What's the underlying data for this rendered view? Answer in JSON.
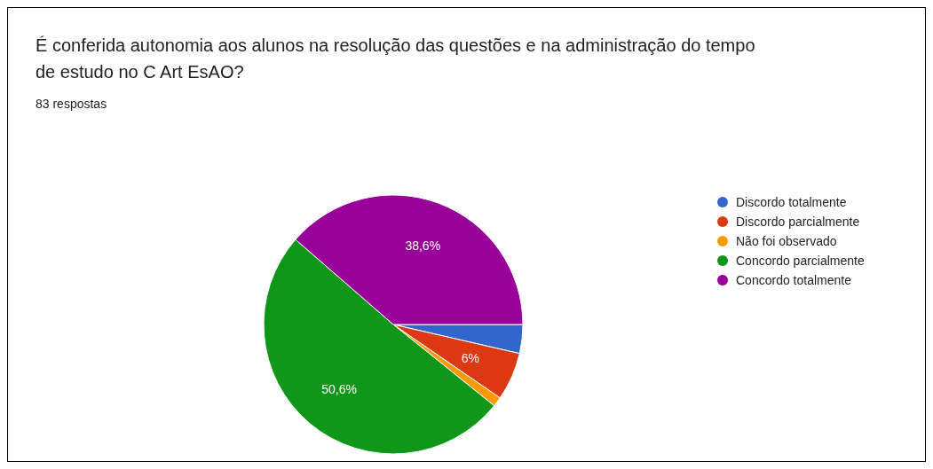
{
  "chart_data": {
    "type": "pie",
    "title": "É conferida autonomia aos alunos na resolução das questões e na administração do tempo de estudo no C Art EsAO?",
    "subtitle": "83 respostas",
    "categories": [
      "Discordo totalmente",
      "Discordo parcialmente",
      "Não foi observado",
      "Concordo parcialmente",
      "Concordo totalmente"
    ],
    "values": [
      3.6,
      6,
      1.2,
      50.6,
      38.6
    ],
    "colors": [
      "#3366cc",
      "#dc3912",
      "#ff9900",
      "#109618",
      "#990099"
    ],
    "value_labels": [
      null,
      "6%",
      null,
      "50,6%",
      "38,6%"
    ],
    "legend": "right"
  }
}
